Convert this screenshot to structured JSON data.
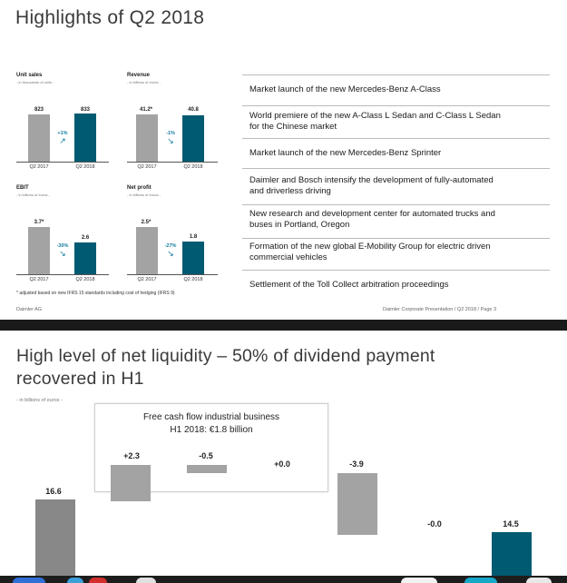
{
  "slide1": {
    "title": "Highlights of Q2 2018",
    "kpis": {
      "unit_sales": {
        "title": "Unit sales",
        "subtitle": "- in thousands of units -",
        "v2017": "823",
        "v2018": "833",
        "pct": "+1%",
        "arrow": "↗",
        "x2017": "Q2 2017",
        "x2018": "Q2 2018"
      },
      "revenue": {
        "title": "Revenue",
        "subtitle": "- in billions of euros -",
        "v2017": "41.2*",
        "v2018": "40.8",
        "pct": "-1%",
        "arrow": "↘",
        "x2017": "Q2 2017",
        "x2018": "Q2 2018"
      },
      "ebit": {
        "title": "EBIT",
        "subtitle": "- in billions of euros -",
        "v2017": "3.7*",
        "v2018": "2.6",
        "pct": "-30%",
        "arrow": "↘",
        "x2017": "Q2 2017",
        "x2018": "Q2 2018"
      },
      "net_profit": {
        "title": "Net profit",
        "subtitle": "- in billions of euros -",
        "v2017": "2.5*",
        "v2018": "1.8",
        "pct": "-27%",
        "arrow": "↘",
        "x2017": "Q2 2017",
        "x2018": "Q2 2018"
      }
    },
    "footnote": "* adjusted based on new IFRS 15 standards including cost of hedging (IFRS 9)",
    "highlights": [
      "Market launch of the new Mercedes-Benz A-Class",
      "World premiere of the new A-Class L Sedan and C-Class L Sedan\nfor the Chinese market",
      "Market launch of the new Mercedes-Benz Sprinter",
      "Daimler and Bosch intensify the development of fully-automated\nand driverless driving",
      "New research and development center for automated trucks and\nbuses in Portland, Oregon",
      "Formation of the new global E-Mobility Group for electric driven\ncommercial vehicles",
      "Settlement of the Toll Collect arbitration proceedings"
    ],
    "footer_left": "Daimler AG",
    "footer_right": "Daimler Corporate Presentation / Q2 2018 /  Page 3"
  },
  "slide2": {
    "title_line1": "High level of net liquidity – 50% of dividend payment",
    "title_line2": "recovered in H1",
    "unit_note": "- in billions of euros -",
    "box_title_line1": "Free cash flow industrial business",
    "box_title_line2": "H1 2018: €1.8 billion",
    "waterfall_values": [
      "16.6",
      "+2.3",
      "-0.5",
      "+0.0",
      "-3.9",
      "-0.0",
      "14.5"
    ]
  },
  "colors": {
    "teal": "#005a71",
    "grey_bar": "#a3a3a3",
    "accent_blue": "#0f7aa0"
  }
}
